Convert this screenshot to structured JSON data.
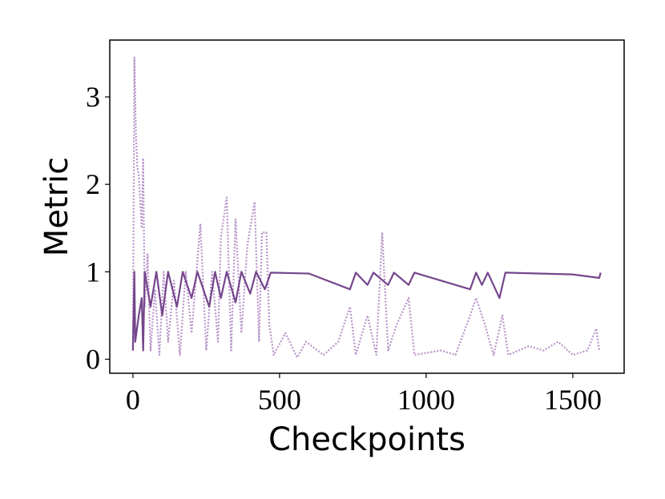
{
  "chart_data": {
    "type": "line",
    "xlabel": "Checkpoints",
    "ylabel": "Metric",
    "xlim": [
      -79,
      1675
    ],
    "ylim": [
      -0.16,
      3.65
    ],
    "xticks": [
      0,
      500,
      1000,
      1500
    ],
    "yticks": [
      0,
      1,
      2,
      3
    ],
    "series": [
      {
        "color": "#b794c9",
        "style": "dotted",
        "x": [
          0,
          5,
          10,
          15,
          20,
          25,
          30,
          35,
          40,
          50,
          60,
          75,
          90,
          105,
          120,
          140,
          160,
          180,
          200,
          230,
          250,
          270,
          290,
          300,
          320,
          335,
          350,
          370,
          390,
          415,
          430,
          440,
          455,
          465,
          480,
          520,
          560,
          590,
          650,
          700,
          740,
          760,
          800,
          830,
          850,
          870,
          900,
          940,
          960,
          1050,
          1100,
          1150,
          1170,
          1200,
          1230,
          1260,
          1280,
          1350,
          1400,
          1450,
          1500,
          1550,
          1580,
          1590
        ],
        "values": [
          0.1,
          3.45,
          2.6,
          2.2,
          2.1,
          1.8,
          1.5,
          2.3,
          0.6,
          1.2,
          0.1,
          0.8,
          0.05,
          1.0,
          0.2,
          0.9,
          0.05,
          1.0,
          0.3,
          1.55,
          0.1,
          1.0,
          0.2,
          1.4,
          1.85,
          0.1,
          1.6,
          0.3,
          1.3,
          1.8,
          0.2,
          1.45,
          1.45,
          0.4,
          0.05,
          0.3,
          0.02,
          0.2,
          0.05,
          0.2,
          0.6,
          0.05,
          0.5,
          0.05,
          1.45,
          0.1,
          0.4,
          0.7,
          0.05,
          0.1,
          0.05,
          0.5,
          0.7,
          0.4,
          0.05,
          0.5,
          0.05,
          0.15,
          0.1,
          0.2,
          0.05,
          0.1,
          0.35,
          0.1
        ]
      },
      {
        "color": "#75468c",
        "style": "solid",
        "x": [
          0,
          5,
          8,
          20,
          30,
          35,
          40,
          60,
          80,
          100,
          120,
          150,
          170,
          200,
          220,
          260,
          280,
          300,
          320,
          350,
          370,
          400,
          420,
          450,
          470,
          600,
          740,
          760,
          800,
          820,
          870,
          890,
          940,
          960,
          1150,
          1170,
          1190,
          1210,
          1250,
          1270,
          1500,
          1590,
          1595
        ],
        "values": [
          0.1,
          1.0,
          0.2,
          0.5,
          0.7,
          0.1,
          1.0,
          0.6,
          1.0,
          0.5,
          1.0,
          0.6,
          1.0,
          0.7,
          1.0,
          0.6,
          1.0,
          0.7,
          1.0,
          0.65,
          1.0,
          0.75,
          1.0,
          0.8,
          0.99,
          0.98,
          0.8,
          0.99,
          0.85,
          0.99,
          0.85,
          0.99,
          0.85,
          0.99,
          0.8,
          0.99,
          0.85,
          0.99,
          0.7,
          0.99,
          0.97,
          0.93,
          0.99
        ]
      }
    ]
  }
}
